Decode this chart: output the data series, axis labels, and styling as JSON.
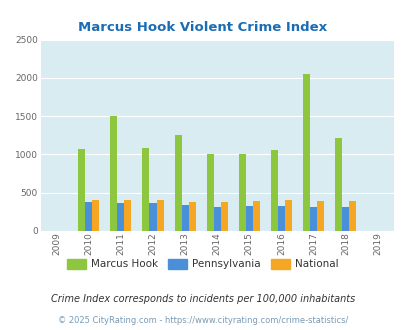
{
  "title": "Marcus Hook Violent Crime Index",
  "years": [
    "2009",
    "2010",
    "2011",
    "2012",
    "2013",
    "2014",
    "2015",
    "2016",
    "2017",
    "2018",
    "2019"
  ],
  "marcus_hook": [
    0,
    1070,
    1500,
    1090,
    1260,
    1010,
    1010,
    1060,
    2050,
    1210,
    0
  ],
  "pennsylvania": [
    0,
    375,
    360,
    360,
    335,
    315,
    330,
    325,
    320,
    315,
    0
  ],
  "national": [
    0,
    410,
    400,
    400,
    375,
    375,
    395,
    405,
    395,
    390,
    0
  ],
  "color_marcus": "#8dc63f",
  "color_penn": "#4a90d9",
  "color_national": "#f5a623",
  "bg_color": "#d9ecf2",
  "ylim": [
    0,
    2500
  ],
  "yticks": [
    0,
    500,
    1000,
    1500,
    2000,
    2500
  ],
  "title_color": "#1a6db5",
  "legend_labels": [
    "Marcus Hook",
    "Pennsylvania",
    "National"
  ],
  "footnote1": "Crime Index corresponds to incidents per 100,000 inhabitants",
  "footnote2": "© 2025 CityRating.com - https://www.cityrating.com/crime-statistics/",
  "bar_width": 0.22
}
